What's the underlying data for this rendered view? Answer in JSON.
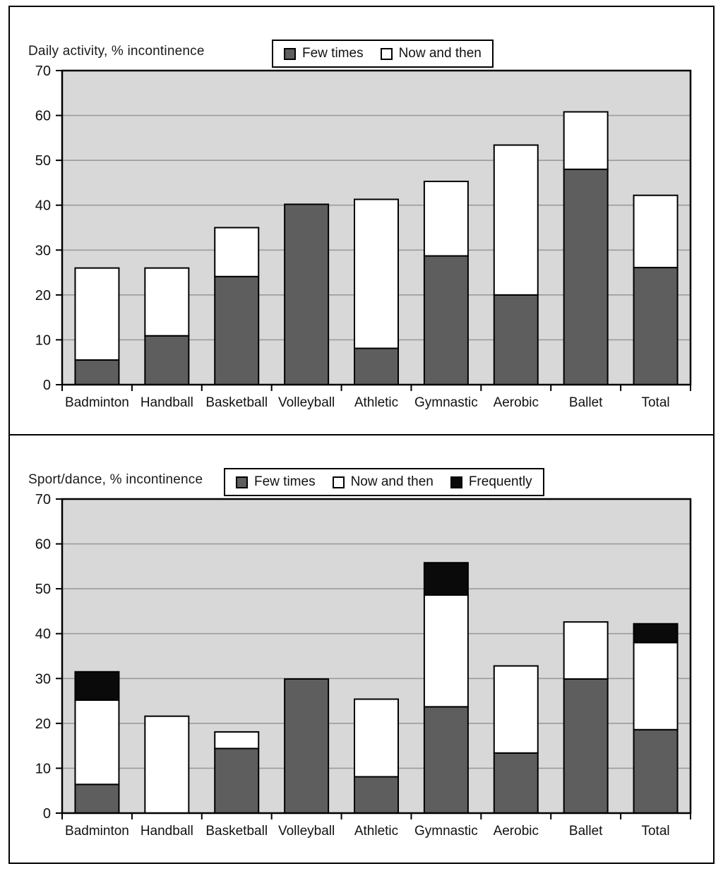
{
  "figure": {
    "panels": [
      {
        "title": "Daily activity, % incontinence"
      },
      {
        "title": "Sport/dance, % incontinence"
      }
    ]
  },
  "colors": {
    "few_times": "#5e5e5e",
    "now_and_then": "#ffffff",
    "frequently": "#0a0a0a",
    "plot_background": "#d8d8d8",
    "gridline": "#9b9b9b",
    "axis": "#000000"
  },
  "chart_data": [
    {
      "type": "bar",
      "stacked": true,
      "title": "Daily activity, % incontinence",
      "categories": [
        "Badminton",
        "Handball",
        "Basketball",
        "Volleyball",
        "Athletic",
        "Gymnastic",
        "Aerobic",
        "Ballet",
        "Total"
      ],
      "series": [
        {
          "name": "Few times",
          "color": "#5e5e5e",
          "values": [
            5.5,
            10.9,
            24.1,
            40.2,
            8.1,
            28.7,
            20.0,
            48.0,
            26.1
          ]
        },
        {
          "name": "Now and then",
          "color": "#ffffff",
          "values": [
            20.5,
            15.1,
            10.9,
            0,
            33.2,
            16.6,
            33.4,
            12.8,
            16.1
          ]
        }
      ],
      "stack_totals": [
        26.0,
        26.0,
        35.0,
        40.2,
        41.3,
        45.3,
        53.4,
        60.8,
        42.2
      ],
      "ylim": [
        0,
        70
      ],
      "yticks": [
        0,
        10,
        20,
        30,
        40,
        50,
        60,
        70
      ],
      "grid": true,
      "legend_position": "top"
    },
    {
      "type": "bar",
      "stacked": true,
      "title": "Sport/dance, % incontinence",
      "categories": [
        "Badminton",
        "Handball",
        "Basketball",
        "Volleyball",
        "Athletic",
        "Gymnastic",
        "Aerobic",
        "Ballet",
        "Total"
      ],
      "series": [
        {
          "name": "Few times",
          "color": "#5e5e5e",
          "values": [
            6.4,
            0,
            14.4,
            29.9,
            8.1,
            23.7,
            13.4,
            29.9,
            18.6
          ]
        },
        {
          "name": "Now and then",
          "color": "#ffffff",
          "values": [
            18.8,
            21.6,
            3.7,
            0,
            17.3,
            24.9,
            19.4,
            12.7,
            19.4
          ]
        },
        {
          "name": "Frequently",
          "color": "#0a0a0a",
          "values": [
            6.3,
            0,
            0,
            0,
            0,
            7.2,
            0,
            0,
            4.2
          ]
        }
      ],
      "stack_totals": [
        31.5,
        21.6,
        18.1,
        29.9,
        25.4,
        55.8,
        32.8,
        42.6,
        42.2
      ],
      "ylim": [
        0,
        70
      ],
      "yticks": [
        0,
        10,
        20,
        30,
        40,
        50,
        60,
        70
      ],
      "grid": true,
      "legend_position": "top"
    }
  ]
}
